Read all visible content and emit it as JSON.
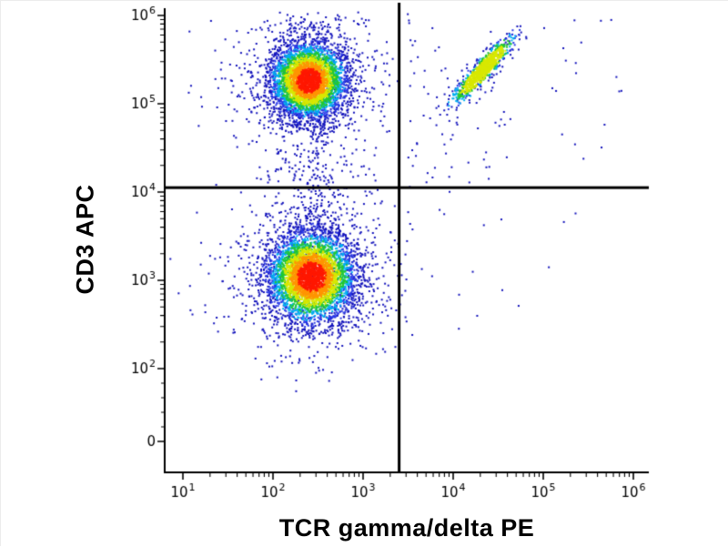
{
  "figure": {
    "background": "#ffffff",
    "axis_color": "#000000",
    "gate_color": "#000000"
  },
  "chart_data": {
    "type": "scatter",
    "subtype": "flow-cytometry-density-dot-plot",
    "title": "",
    "xlabel": "TCR gamma/delta PE",
    "ylabel": "CD3 APC",
    "x_scale": "log",
    "y_scale": "log",
    "xlim_log10": [
      1,
      6
    ],
    "ylim_log10_top": 6,
    "x_ticks": [
      {
        "base": 10,
        "exp": 1
      },
      {
        "base": 10,
        "exp": 2
      },
      {
        "base": 10,
        "exp": 3
      },
      {
        "base": 10,
        "exp": 4
      },
      {
        "base": 10,
        "exp": 5
      },
      {
        "base": 10,
        "exp": 6
      }
    ],
    "y_ticks": [
      {
        "base": 10,
        "exp": 6
      },
      {
        "base": 10,
        "exp": 5
      },
      {
        "base": 10,
        "exp": 4
      },
      {
        "base": 10,
        "exp": 3
      },
      {
        "base": 10,
        "exp": 2
      },
      {
        "label": "0"
      }
    ],
    "grid": false,
    "legend": false,
    "quadrant_gates": {
      "x_gate_log10": 3.4,
      "x_gate_value": 2500,
      "y_gate_log10": 4.05,
      "y_gate_value": 11000
    },
    "density_palette": [
      "#1414bc",
      "#2a3ae8",
      "#00b0f0",
      "#22c832",
      "#d8e800",
      "#ff9500",
      "#ff1800"
    ],
    "density_thresholds": [
      0.35,
      0.8,
      1.4,
      2.1,
      3.0,
      4.2
    ],
    "seed": 7,
    "populations": [
      {
        "id": "cd3pos-tcrgd-neg-core",
        "label": "CD3+ TCRgd- lymphocytes (dense cluster, upper left)",
        "type": "gaussian2d",
        "n": 3900,
        "cx_log": 2.4,
        "cy_log": 5.26,
        "sx_log": 0.21,
        "sy_log": 0.215
      },
      {
        "id": "cd3pos-tcrgd-neg-halo",
        "label": "CD3+ cluster sparse halo",
        "type": "gaussian2d",
        "n": 650,
        "cx_log": 2.4,
        "cy_log": 5.26,
        "sx_log": 0.47,
        "sy_log": 0.46,
        "cap": 0
      },
      {
        "id": "cd3neg-tcrgd-neg-core",
        "label": "CD3- TCRgd- cells (dense cluster, lower left)",
        "type": "gaussian2d",
        "n": 4300,
        "cx_log": 2.43,
        "cy_log": 3.04,
        "sx_log": 0.245,
        "sy_log": 0.26
      },
      {
        "id": "cd3neg-tcrgd-neg-halo",
        "label": "CD3- cluster sparse halo",
        "type": "gaussian2d",
        "n": 750,
        "cx_log": 2.43,
        "cy_log": 3.04,
        "sx_log": 0.5,
        "sy_log": 0.5,
        "cap": 0
      },
      {
        "id": "tcrgd-pos-core",
        "label": "CD3+ TCRgd+ cells (diagonal streak, upper right)",
        "type": "diagonal",
        "n": 950,
        "cx_log": 4.33,
        "cy_log": 5.38,
        "dirx": 0.66,
        "diry": 0.75,
        "along": 0.21,
        "perp": 0.042,
        "cap": 4
      },
      {
        "id": "tcrgd-pos-halo",
        "label": "Diagonal streak sparse halo",
        "type": "diagonal",
        "n": 110,
        "cx_log": 4.33,
        "cy_log": 5.38,
        "dirx": 0.66,
        "diry": 0.75,
        "along": 0.34,
        "perp": 0.09,
        "cap": 0
      },
      {
        "id": "bridge-column",
        "label": "Sparse bridge between CD3- and CD3+ clusters",
        "type": "column",
        "n": 150,
        "cx_log": 2.44,
        "sx_log": 0.13,
        "y0_log": 3.5,
        "y1_log": 4.95,
        "cap": 0
      },
      {
        "id": "bridge-wide",
        "label": "Wide sparse bridge scatter",
        "type": "column",
        "n": 45,
        "cx_log": 2.44,
        "sx_log": 0.38,
        "y0_log": 3.45,
        "y1_log": 4.85,
        "cap": 0
      },
      {
        "id": "top-smear",
        "label": "Sparse dots above CD3+ cluster",
        "type": "column",
        "n": 55,
        "cx_log": 2.42,
        "sx_log": 0.27,
        "y0_log": 5.55,
        "y1_log": 5.98,
        "cap": 0
      },
      {
        "id": "upper-right-scatter",
        "label": "Sparse dots, upper right quadrant",
        "type": "uniform",
        "n": 48,
        "x0_log": 3.45,
        "x1_log": 5.9,
        "y0_log": 4.2,
        "y1_log": 5.95,
        "cap": 0
      },
      {
        "id": "mid-right-band",
        "label": "Sparse dots right of x gate",
        "type": "uniform",
        "n": 25,
        "x0_log": 3.42,
        "x1_log": 4.6,
        "y0_log": 4.05,
        "y1_log": 5.0,
        "cap": 0
      },
      {
        "id": "lower-right-scatter",
        "label": "Sparse dots, lower right quadrant",
        "type": "uniform",
        "n": 14,
        "x0_log": 3.45,
        "x1_log": 5.6,
        "y0_log": 2.4,
        "y1_log": 4.0,
        "cap": 0
      }
    ]
  }
}
